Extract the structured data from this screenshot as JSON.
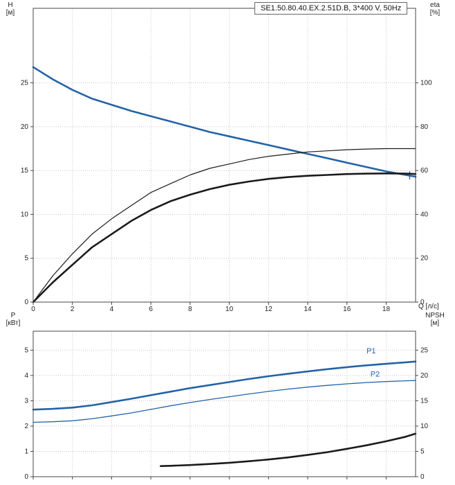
{
  "title_box": "SE1.50.80.40.EX.2.51D.B, 3*400 V, 50Hz",
  "axes_titles": {
    "h": [
      "H",
      "[м]"
    ],
    "eta": [
      "eta",
      "[%]"
    ],
    "q": "Q [л/с]",
    "p": [
      "P",
      "[кВт]"
    ],
    "npsh": [
      "NPSH",
      "[м]"
    ]
  },
  "colors": {
    "blue": "#2363a8",
    "black": "#1a1a1a",
    "grid": "#c4c4c4",
    "frame": "#444444",
    "text": "#222222",
    "plot_bg": "#ffffff"
  },
  "chart_data": [
    {
      "type": "line",
      "name": "hq-eta-chart",
      "title": "SE1.50.80.40.EX.2.51D.B, 3*400 V, 50Hz",
      "x_axis": {
        "label": "Q [л/с]",
        "lim": [
          0,
          19.5
        ],
        "ticks": [
          0,
          2,
          4,
          6,
          8,
          10,
          12,
          14,
          16,
          18
        ],
        "show_labels": true
      },
      "y_left": {
        "label": "H [м]",
        "lim": [
          0,
          33.5
        ],
        "ticks": [
          0,
          5,
          10,
          15,
          20,
          25
        ]
      },
      "y_right": {
        "label": "eta [%]",
        "lim": [
          0,
          134
        ],
        "ticks": [
          0,
          20,
          40,
          60,
          80,
          100
        ]
      },
      "grid": true,
      "legend": "none",
      "series": [
        {
          "name": "head-curve",
          "axis": "left",
          "color": "blue",
          "width": 2.6,
          "marker": [
            19.2,
            14.45
          ],
          "points": [
            [
              0,
              26.8
            ],
            [
              1,
              25.4
            ],
            [
              2,
              24.2
            ],
            [
              3,
              23.2
            ],
            [
              4,
              22.5
            ],
            [
              5,
              21.8
            ],
            [
              6,
              21.2
            ],
            [
              7,
              20.6
            ],
            [
              8,
              20.0
            ],
            [
              9,
              19.4
            ],
            [
              10,
              18.9
            ],
            [
              11,
              18.4
            ],
            [
              12,
              17.9
            ],
            [
              13,
              17.4
            ],
            [
              14,
              16.9
            ],
            [
              15,
              16.4
            ],
            [
              16,
              15.9
            ],
            [
              17,
              15.4
            ],
            [
              18,
              14.9
            ],
            [
              19,
              14.5
            ],
            [
              19.5,
              14.3
            ]
          ]
        },
        {
          "name": "efficiency-curve-thin",
          "axis": "right",
          "color": "black",
          "width": 1.2,
          "points": [
            [
              0,
              0
            ],
            [
              1,
              12
            ],
            [
              2,
              22
            ],
            [
              3,
              31
            ],
            [
              4,
              38
            ],
            [
              5,
              44
            ],
            [
              6,
              50
            ],
            [
              7,
              54
            ],
            [
              8,
              58
            ],
            [
              9,
              61
            ],
            [
              10,
              63
            ],
            [
              11,
              65
            ],
            [
              12,
              66.5
            ],
            [
              13,
              67.5
            ],
            [
              14,
              68.5
            ],
            [
              15,
              69
            ],
            [
              16,
              69.5
            ],
            [
              17,
              69.8
            ],
            [
              18,
              70
            ],
            [
              19,
              70
            ],
            [
              19.5,
              70
            ]
          ]
        },
        {
          "name": "efficiency-curve-thick",
          "axis": "right",
          "color": "black",
          "width": 2.6,
          "points": [
            [
              0,
              0
            ],
            [
              1,
              9
            ],
            [
              2,
              17
            ],
            [
              3,
              25
            ],
            [
              4,
              31
            ],
            [
              5,
              37
            ],
            [
              6,
              42
            ],
            [
              7,
              46
            ],
            [
              8,
              49
            ],
            [
              9,
              51.5
            ],
            [
              10,
              53.5
            ],
            [
              11,
              55
            ],
            [
              12,
              56.2
            ],
            [
              13,
              57
            ],
            [
              14,
              57.6
            ],
            [
              15,
              58
            ],
            [
              16,
              58.4
            ],
            [
              17,
              58.6
            ],
            [
              18,
              58.7
            ],
            [
              19,
              58.6
            ],
            [
              19.5,
              58.4
            ]
          ]
        }
      ]
    },
    {
      "type": "line",
      "name": "power-npsh-chart",
      "x_axis": {
        "label": "",
        "lim": [
          0,
          19.5
        ],
        "ticks": [
          0,
          2,
          4,
          6,
          8,
          10,
          12,
          14,
          16,
          18
        ],
        "show_labels": false
      },
      "y_left": {
        "label": "P [кВт]",
        "lim": [
          0,
          5.75
        ],
        "ticks": [
          0,
          1,
          2,
          3,
          4,
          5
        ]
      },
      "y_right": {
        "label": "NPSH [м]",
        "lim": [
          0,
          28.75
        ],
        "ticks": [
          0,
          5,
          10,
          15,
          20,
          25
        ]
      },
      "grid": true,
      "legend": "inline",
      "series": [
        {
          "name": "p1-curve",
          "axis": "left",
          "color": "blue",
          "width": 2.6,
          "label": {
            "text": "P1",
            "at": [
              17.0,
              4.87
            ]
          },
          "points": [
            [
              0,
              2.65
            ],
            [
              1,
              2.68
            ],
            [
              2,
              2.73
            ],
            [
              3,
              2.82
            ],
            [
              4,
              2.95
            ],
            [
              5,
              3.08
            ],
            [
              6,
              3.22
            ],
            [
              7,
              3.36
            ],
            [
              8,
              3.5
            ],
            [
              9,
              3.62
            ],
            [
              10,
              3.74
            ],
            [
              11,
              3.86
            ],
            [
              12,
              3.97
            ],
            [
              13,
              4.07
            ],
            [
              14,
              4.16
            ],
            [
              15,
              4.25
            ],
            [
              16,
              4.33
            ],
            [
              17,
              4.4
            ],
            [
              18,
              4.46
            ],
            [
              19,
              4.52
            ],
            [
              19.5,
              4.55
            ]
          ]
        },
        {
          "name": "p2-curve",
          "axis": "left",
          "color": "blue",
          "width": 1.3,
          "label": {
            "text": "P2",
            "at": [
              17.2,
              3.95
            ]
          },
          "points": [
            [
              0,
              2.15
            ],
            [
              1,
              2.17
            ],
            [
              2,
              2.21
            ],
            [
              3,
              2.29
            ],
            [
              4,
              2.4
            ],
            [
              5,
              2.52
            ],
            [
              6,
              2.66
            ],
            [
              7,
              2.8
            ],
            [
              8,
              2.93
            ],
            [
              9,
              3.05
            ],
            [
              10,
              3.16
            ],
            [
              11,
              3.27
            ],
            [
              12,
              3.37
            ],
            [
              13,
              3.46
            ],
            [
              14,
              3.54
            ],
            [
              15,
              3.61
            ],
            [
              16,
              3.67
            ],
            [
              17,
              3.72
            ],
            [
              18,
              3.76
            ],
            [
              19,
              3.79
            ],
            [
              19.5,
              3.8
            ]
          ]
        },
        {
          "name": "npsh-curve",
          "axis": "right",
          "color": "black",
          "width": 2.6,
          "points": [
            [
              6.5,
              2.1
            ],
            [
              7,
              2.15
            ],
            [
              8,
              2.3
            ],
            [
              9,
              2.5
            ],
            [
              10,
              2.75
            ],
            [
              11,
              3.05
            ],
            [
              12,
              3.4
            ],
            [
              13,
              3.8
            ],
            [
              14,
              4.3
            ],
            [
              15,
              4.85
            ],
            [
              16,
              5.5
            ],
            [
              17,
              6.2
            ],
            [
              18,
              7.0
            ],
            [
              19,
              7.9
            ],
            [
              19.5,
              8.5
            ]
          ]
        }
      ]
    }
  ]
}
